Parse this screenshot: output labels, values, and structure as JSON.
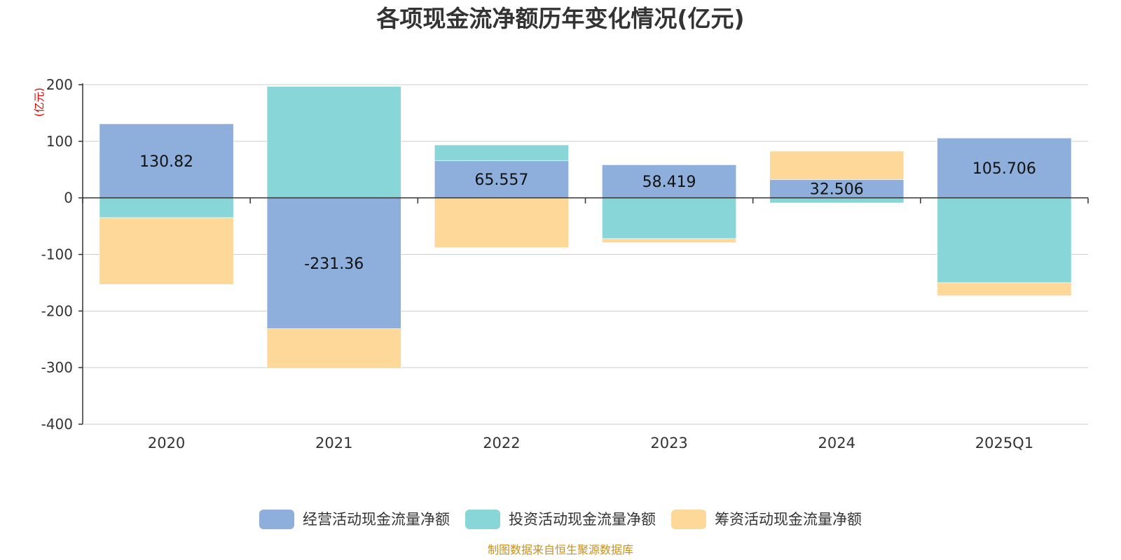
{
  "title": "各项现金流净额历年变化情况(亿元)",
  "source_note": "制图数据来自恒生聚源数据库",
  "chart_data": {
    "type": "bar",
    "stacked": true,
    "unit_label": "(亿元)",
    "categories": [
      "2020",
      "2021",
      "2022",
      "2023",
      "2024",
      "2025Q1"
    ],
    "ylim": [
      -400,
      200
    ],
    "yticks": [
      "200",
      "100",
      "0",
      "-100",
      "-200",
      "-300",
      "-400"
    ],
    "grid": true,
    "legend_position": "bottom",
    "series": [
      {
        "name": "经营活动现金流量净额",
        "color": "#8eaedb",
        "values": [
          130.82,
          -231.36,
          65.557,
          58.419,
          32.506,
          105.706
        ],
        "labels": [
          "130.82",
          "-231.36",
          "65.557",
          "58.419",
          "32.506",
          "105.706"
        ]
      },
      {
        "name": "投资活动现金流量净额",
        "color": "#88d6d8",
        "values": [
          -35,
          197,
          28,
          -72,
          -9,
          -150
        ]
      },
      {
        "name": "筹资活动现金流量净额",
        "color": "#fdd898",
        "values": [
          -118,
          -70,
          -88,
          -7,
          50,
          -23
        ]
      }
    ]
  }
}
